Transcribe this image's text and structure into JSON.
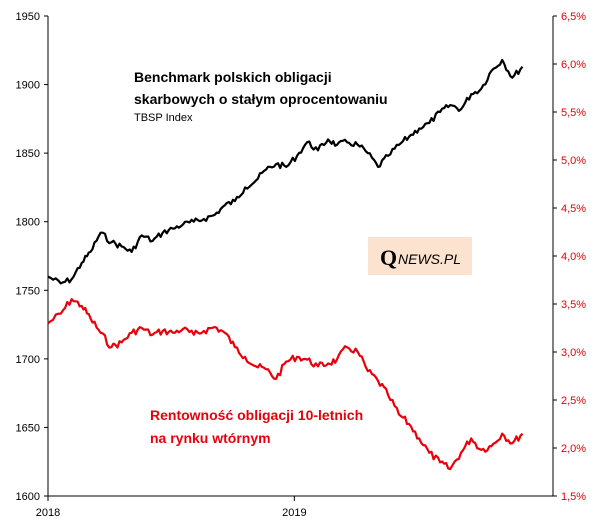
{
  "colors": {
    "index_line": "#000000",
    "yield_line": "#e8000b",
    "right_axis": "#e8000b",
    "axis": "#000000",
    "logo_bg": "#fbe3cf"
  },
  "title_block": {
    "line1": "Benchmark polskich obligacji",
    "line2": "skarbowych o stałym oprocentowaniu",
    "line3": "TBSP Index"
  },
  "red_label": {
    "line1": "Rentowność obligacji 10-letnich",
    "line2": "na rynku wtórnym"
  },
  "logo": {
    "q": "Q",
    "rest": "NEWS.PL"
  },
  "chart_data": {
    "type": "line",
    "x_ticks": [
      "2018",
      "2019"
    ],
    "xlim": [
      "2018-01-01",
      "2019-12-31"
    ],
    "y_left": {
      "ticks": [
        "1950",
        "1900",
        "1850",
        "1800",
        "1750",
        "1700",
        "1650",
        "1600"
      ],
      "ylim": [
        1600,
        1950
      ]
    },
    "y_right": {
      "ticks": [
        "6,5%",
        "6,0%",
        "5,5%",
        "5,0%",
        "4,5%",
        "4,0%",
        "3,5%",
        "3,0%",
        "2,5%",
        "2,0%",
        "1,5%"
      ],
      "ylim": [
        1.5,
        6.5
      ]
    },
    "series": [
      {
        "name": "TBSP Index",
        "axis": "left",
        "x": [
          "2018-01-01",
          "2018-01-20",
          "2018-02-05",
          "2018-02-20",
          "2018-03-05",
          "2018-03-20",
          "2018-04-05",
          "2018-04-20",
          "2018-05-05",
          "2018-05-20",
          "2018-06-05",
          "2018-06-20",
          "2018-07-05",
          "2018-07-20",
          "2018-08-05",
          "2018-08-20",
          "2018-09-05",
          "2018-09-20",
          "2018-10-05",
          "2018-10-20",
          "2018-11-05",
          "2018-11-20",
          "2018-12-05",
          "2018-12-20",
          "2019-01-05",
          "2019-01-20",
          "2019-02-05",
          "2019-02-20",
          "2019-03-05",
          "2019-03-20",
          "2019-04-05",
          "2019-04-20",
          "2019-05-05",
          "2019-05-20",
          "2019-06-05",
          "2019-06-20",
          "2019-07-05",
          "2019-07-20",
          "2019-08-05",
          "2019-08-20",
          "2019-09-05",
          "2019-09-20",
          "2019-10-05",
          "2019-10-20",
          "2019-11-05",
          "2019-11-20",
          "2019-12-05"
        ],
        "values": [
          1760,
          1755,
          1758,
          1770,
          1778,
          1792,
          1785,
          1782,
          1778,
          1790,
          1786,
          1792,
          1795,
          1798,
          1800,
          1802,
          1805,
          1812,
          1815,
          1825,
          1830,
          1838,
          1842,
          1840,
          1848,
          1858,
          1852,
          1860,
          1856,
          1858,
          1856,
          1850,
          1840,
          1848,
          1856,
          1862,
          1868,
          1872,
          1880,
          1885,
          1882,
          1893,
          1897,
          1910,
          1918,
          1905,
          1913
        ]
      },
      {
        "name": "Rentowność obligacji 10-letnich",
        "axis": "right",
        "x": [
          "2018-01-01",
          "2018-01-20",
          "2018-02-05",
          "2018-02-20",
          "2018-03-05",
          "2018-03-20",
          "2018-04-05",
          "2018-04-20",
          "2018-05-05",
          "2018-05-20",
          "2018-06-05",
          "2018-06-20",
          "2018-07-05",
          "2018-07-20",
          "2018-08-05",
          "2018-08-20",
          "2018-09-05",
          "2018-09-20",
          "2018-10-05",
          "2018-10-20",
          "2018-11-05",
          "2018-11-20",
          "2018-12-05",
          "2018-12-20",
          "2019-01-05",
          "2019-01-20",
          "2019-02-05",
          "2019-02-20",
          "2019-03-05",
          "2019-03-20",
          "2019-04-05",
          "2019-04-20",
          "2019-05-05",
          "2019-05-20",
          "2019-06-05",
          "2019-06-20",
          "2019-07-05",
          "2019-07-20",
          "2019-08-05",
          "2019-08-20",
          "2019-09-05",
          "2019-09-20",
          "2019-10-05",
          "2019-10-20",
          "2019-11-05",
          "2019-11-20",
          "2019-12-05"
        ],
        "values": [
          3.3,
          3.4,
          3.55,
          3.48,
          3.35,
          3.2,
          3.05,
          3.1,
          3.2,
          3.25,
          3.18,
          3.22,
          3.2,
          3.24,
          3.18,
          3.22,
          3.26,
          3.2,
          3.05,
          2.95,
          2.85,
          2.82,
          2.72,
          2.9,
          2.95,
          2.92,
          2.85,
          2.88,
          2.92,
          3.05,
          3.0,
          2.8,
          2.7,
          2.55,
          2.35,
          2.25,
          2.1,
          1.95,
          1.85,
          1.78,
          1.95,
          2.1,
          1.98,
          2.02,
          2.15,
          2.05,
          2.15
        ]
      }
    ],
    "grid": false,
    "legend": "none"
  }
}
